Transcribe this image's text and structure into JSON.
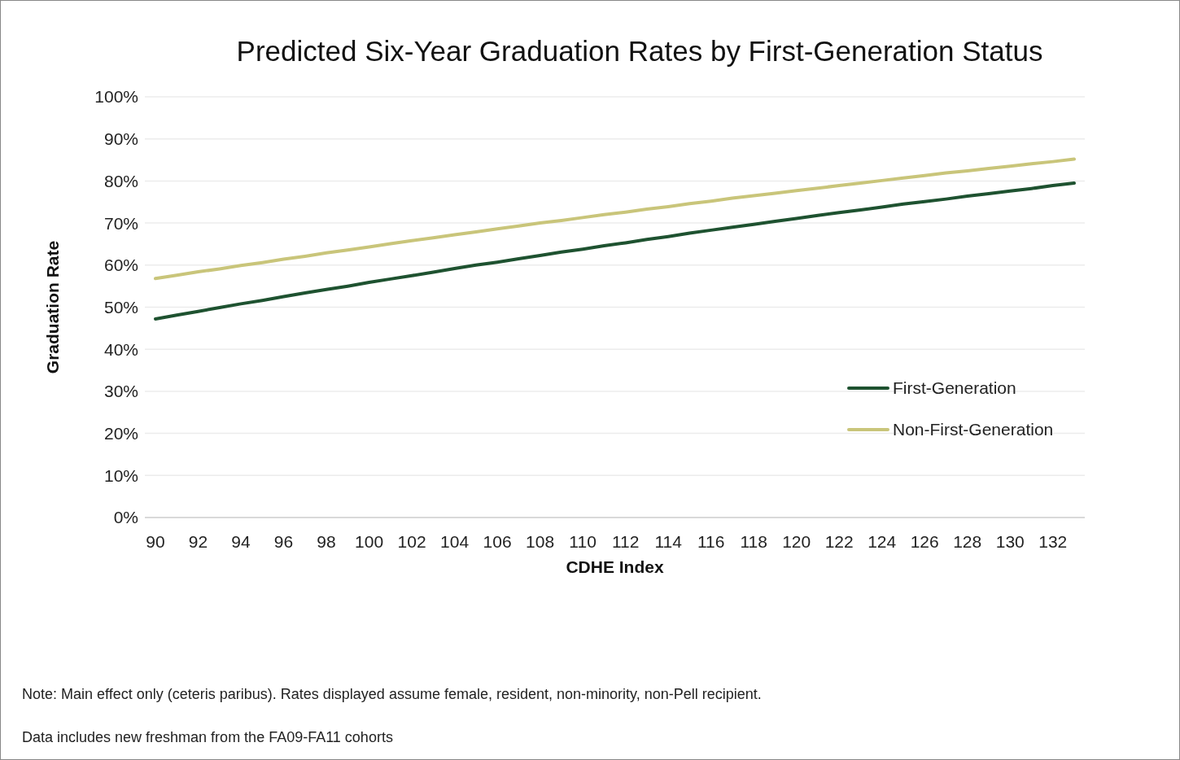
{
  "chart_data": {
    "type": "line",
    "title": "Predicted Six-Year Graduation Rates by First-Generation Status",
    "xlabel": "CDHE Index",
    "ylabel": "Graduation Rate",
    "categories": [
      "90",
      null,
      "92",
      null,
      "94",
      null,
      "96",
      null,
      "98",
      null,
      "100",
      null,
      "102",
      null,
      "104",
      null,
      "106",
      null,
      "108",
      null,
      "110",
      null,
      "112",
      null,
      "114",
      null,
      "116",
      null,
      "118",
      null,
      "120",
      null,
      "122",
      null,
      "124",
      null,
      "126",
      null,
      "128",
      null,
      "130",
      null,
      "132",
      null
    ],
    "series": [
      {
        "name": "First-Generation",
        "color": "#1e5230",
        "values": [
          47.2,
          48.1,
          49.0,
          49.9,
          50.8,
          51.6,
          52.5,
          53.4,
          54.2,
          55.0,
          55.9,
          56.7,
          57.5,
          58.3,
          59.2,
          60.0,
          60.7,
          61.5,
          62.3,
          63.1,
          63.8,
          64.6,
          65.3,
          66.1,
          66.8,
          67.6,
          68.3,
          69.0,
          69.7,
          70.4,
          71.1,
          71.8,
          72.5,
          73.1,
          73.8,
          74.5,
          75.1,
          75.7,
          76.4,
          77.0,
          77.6,
          78.2,
          78.9,
          79.5
        ]
      },
      {
        "name": "Non-First-Generation",
        "color": "#c9c57a",
        "values": [
          56.8,
          57.6,
          58.4,
          59.1,
          59.9,
          60.6,
          61.4,
          62.1,
          62.9,
          63.6,
          64.3,
          65.1,
          65.8,
          66.5,
          67.2,
          67.9,
          68.6,
          69.3,
          70.0,
          70.6,
          71.3,
          72.0,
          72.6,
          73.3,
          73.9,
          74.6,
          75.2,
          75.9,
          76.5,
          77.1,
          77.7,
          78.3,
          78.9,
          79.5,
          80.1,
          80.7,
          81.3,
          81.9,
          82.4,
          83.0,
          83.5,
          84.1,
          84.6,
          85.2
        ]
      }
    ],
    "ylim": [
      0,
      100
    ],
    "yticks": [
      {
        "value": 0,
        "label": "0%"
      },
      {
        "value": 10,
        "label": "10%"
      },
      {
        "value": 20,
        "label": "20%"
      },
      {
        "value": 30,
        "label": "30%"
      },
      {
        "value": 40,
        "label": "40%"
      },
      {
        "value": 50,
        "label": "50%"
      },
      {
        "value": 60,
        "label": "60%"
      },
      {
        "value": 70,
        "label": "70%"
      },
      {
        "value": 80,
        "label": "80%"
      },
      {
        "value": 90,
        "label": "90%"
      },
      {
        "value": 100,
        "label": "100%"
      }
    ],
    "grid": "y",
    "legend": "right",
    "marker": "none",
    "line_style": "solid",
    "annotations": [
      "Note: Main effect only (ceteris paribus).  Rates displayed assume female, resident, non-minority, non-Pell recipient.",
      "Data includes new freshman from the FA09-FA11 cohorts"
    ]
  }
}
